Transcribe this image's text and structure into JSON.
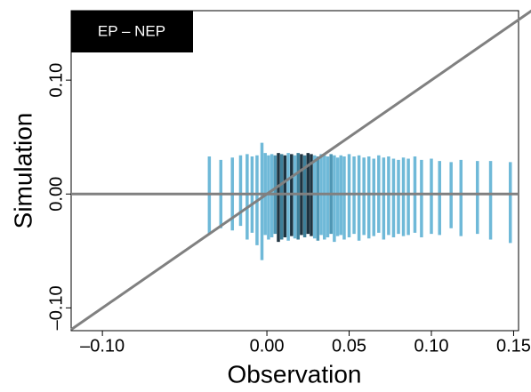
{
  "chart_data": {
    "type": "segments",
    "label": "EP – NEP",
    "x_label": "Observation",
    "y_label": "Simulation",
    "xlim": [
      -0.119,
      0.153
    ],
    "ylim": [
      -0.12,
      0.161
    ],
    "xticks": [
      {
        "value": -0.1,
        "label": "–0.10"
      },
      {
        "value": 0,
        "label": "0.00"
      },
      {
        "value": 0.05,
        "label": "0.05"
      },
      {
        "value": 0.1,
        "label": "0.10"
      },
      {
        "value": 0.15,
        "label": "0.15"
      }
    ],
    "yticks": [
      {
        "value": -0.1,
        "label": "–0.10"
      },
      {
        "value": 0,
        "label": "0.00"
      },
      {
        "value": 0.1,
        "label": "0.10"
      }
    ],
    "reference_color": "#808080",
    "x": [
      -0.035,
      -0.028,
      -0.021,
      -0.016,
      -0.012,
      -0.009,
      -0.006,
      -0.003,
      -0.001,
      0.001,
      0.003,
      0.005,
      0.007,
      0.009,
      0.011,
      0.013,
      0.015,
      0.017,
      0.019,
      0.021,
      0.023,
      0.025,
      0.027,
      0.029,
      0.031,
      0.033,
      0.035,
      0.037,
      0.039,
      0.041,
      0.043,
      0.045,
      0.047,
      0.05,
      0.053,
      0.056,
      0.059,
      0.062,
      0.065,
      0.068,
      0.071,
      0.074,
      0.077,
      0.08,
      0.083,
      0.086,
      0.09,
      0.094,
      0.1,
      0.105,
      0.112,
      0.118,
      0.128,
      0.136,
      0.148
    ],
    "low": [
      -0.035,
      -0.03,
      -0.032,
      -0.028,
      -0.04,
      -0.034,
      -0.045,
      -0.058,
      -0.036,
      -0.04,
      -0.038,
      -0.035,
      -0.042,
      -0.04,
      -0.038,
      -0.041,
      -0.037,
      -0.039,
      -0.04,
      -0.036,
      -0.038,
      -0.035,
      -0.037,
      -0.039,
      -0.041,
      -0.036,
      -0.04,
      -0.038,
      -0.035,
      -0.042,
      -0.037,
      -0.036,
      -0.04,
      -0.038,
      -0.035,
      -0.041,
      -0.036,
      -0.039,
      -0.037,
      -0.034,
      -0.04,
      -0.036,
      -0.038,
      -0.035,
      -0.037,
      -0.036,
      -0.034,
      -0.038,
      -0.035,
      -0.036,
      -0.03,
      -0.037,
      -0.035,
      -0.04,
      -0.043
    ],
    "high": [
      0.033,
      0.03,
      0.032,
      0.034,
      0.035,
      0.033,
      0.034,
      0.045,
      0.036,
      0.034,
      0.035,
      0.034,
      0.036,
      0.035,
      0.034,
      0.036,
      0.035,
      0.034,
      0.036,
      0.035,
      0.034,
      0.036,
      0.035,
      0.034,
      0.033,
      0.035,
      0.034,
      0.033,
      0.035,
      0.034,
      0.032,
      0.034,
      0.033,
      0.035,
      0.033,
      0.034,
      0.032,
      0.033,
      0.031,
      0.034,
      0.032,
      0.033,
      0.031,
      0.03,
      0.032,
      0.031,
      0.033,
      0.03,
      0.031,
      0.029,
      0.028,
      0.03,
      0.029,
      0.029,
      0.028
    ],
    "colors": [
      "#6fb9d8",
      "#6fb9d8",
      "#6fb9d8",
      "#6fb9d8",
      "#6fb9d8",
      "#6fb9d8",
      "#6fb9d8",
      "#6fb9d8",
      "#6fb9d8",
      "#6fb9d8",
      "#6fb9d8",
      "#4f97b5",
      "#1e3340",
      "#3d7f99",
      "#1e3340",
      "#6fb9d8",
      "#1e3340",
      "#6fb9d8",
      "#3d7f99",
      "#1e3340",
      "#3d7f99",
      "#1e3340",
      "#1e3340",
      "#6fb9d8",
      "#4f97b5",
      "#6fb9d8",
      "#6fb9d8",
      "#6fb9d8",
      "#4f97b5",
      "#6fb9d8",
      "#6fb9d8",
      "#6fb9d8",
      "#6fb9d8",
      "#6fb9d8",
      "#6fb9d8",
      "#6fb9d8",
      "#6fb9d8",
      "#6fb9d8",
      "#6fb9d8",
      "#6fb9d8",
      "#6fb9d8",
      "#6fb9d8",
      "#6fb9d8",
      "#6fb9d8",
      "#6fb9d8",
      "#6fb9d8",
      "#6fb9d8",
      "#6fb9d8",
      "#6fb9d8",
      "#6fb9d8",
      "#6fb9d8",
      "#6fb9d8",
      "#6fb9d8",
      "#6fb9d8",
      "#6fb9d8"
    ]
  }
}
